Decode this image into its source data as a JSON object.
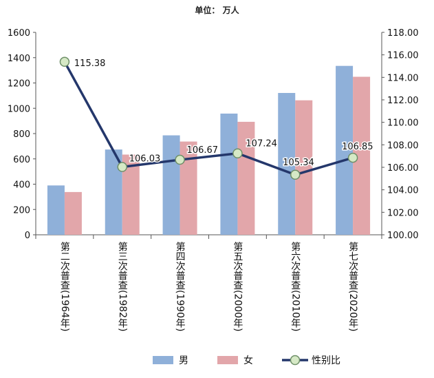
{
  "unit_label": "单位： 万人",
  "chart_data": {
    "type": "bar",
    "categories": [
      "第二次普查(1964年)",
      "第三次普查(1982年)",
      "第四次普查(1990年)",
      "第五次普查(2000年)",
      "第六次普查(2010年)",
      "第七次普查(2020年)"
    ],
    "series": [
      {
        "name": "男",
        "type": "bar",
        "axis": "left",
        "color": "#8FB0D9",
        "values": [
          390,
          674,
          786,
          958,
          1121,
          1335
        ]
      },
      {
        "name": "女",
        "type": "bar",
        "axis": "left",
        "color": "#E2A6AA",
        "values": [
          338,
          634,
          737,
          893,
          1063,
          1249
        ]
      },
      {
        "name": "性别比",
        "type": "line",
        "axis": "right",
        "color": "#24376B",
        "marker_fill": "#D6E9C6",
        "marker_stroke": "#6E8F68",
        "values": [
          115.38,
          106.03,
          106.67,
          107.24,
          105.34,
          106.85
        ],
        "labels": [
          "115.38",
          "106.03",
          "106.67",
          "107.24",
          "105.34",
          "106.85"
        ]
      }
    ],
    "y_left": {
      "min": 0,
      "max": 1600,
      "step": 200,
      "ticks": [
        "0",
        "200",
        "400",
        "600",
        "800",
        "1000",
        "1200",
        "1400",
        "1600"
      ]
    },
    "y_right": {
      "min": 100,
      "max": 118,
      "step": 2,
      "ticks": [
        "100.00",
        "102.00",
        "104.00",
        "106.00",
        "108.00",
        "110.00",
        "112.00",
        "114.00",
        "116.00",
        "118.00"
      ]
    },
    "grid": false,
    "legend_position": "bottom"
  }
}
